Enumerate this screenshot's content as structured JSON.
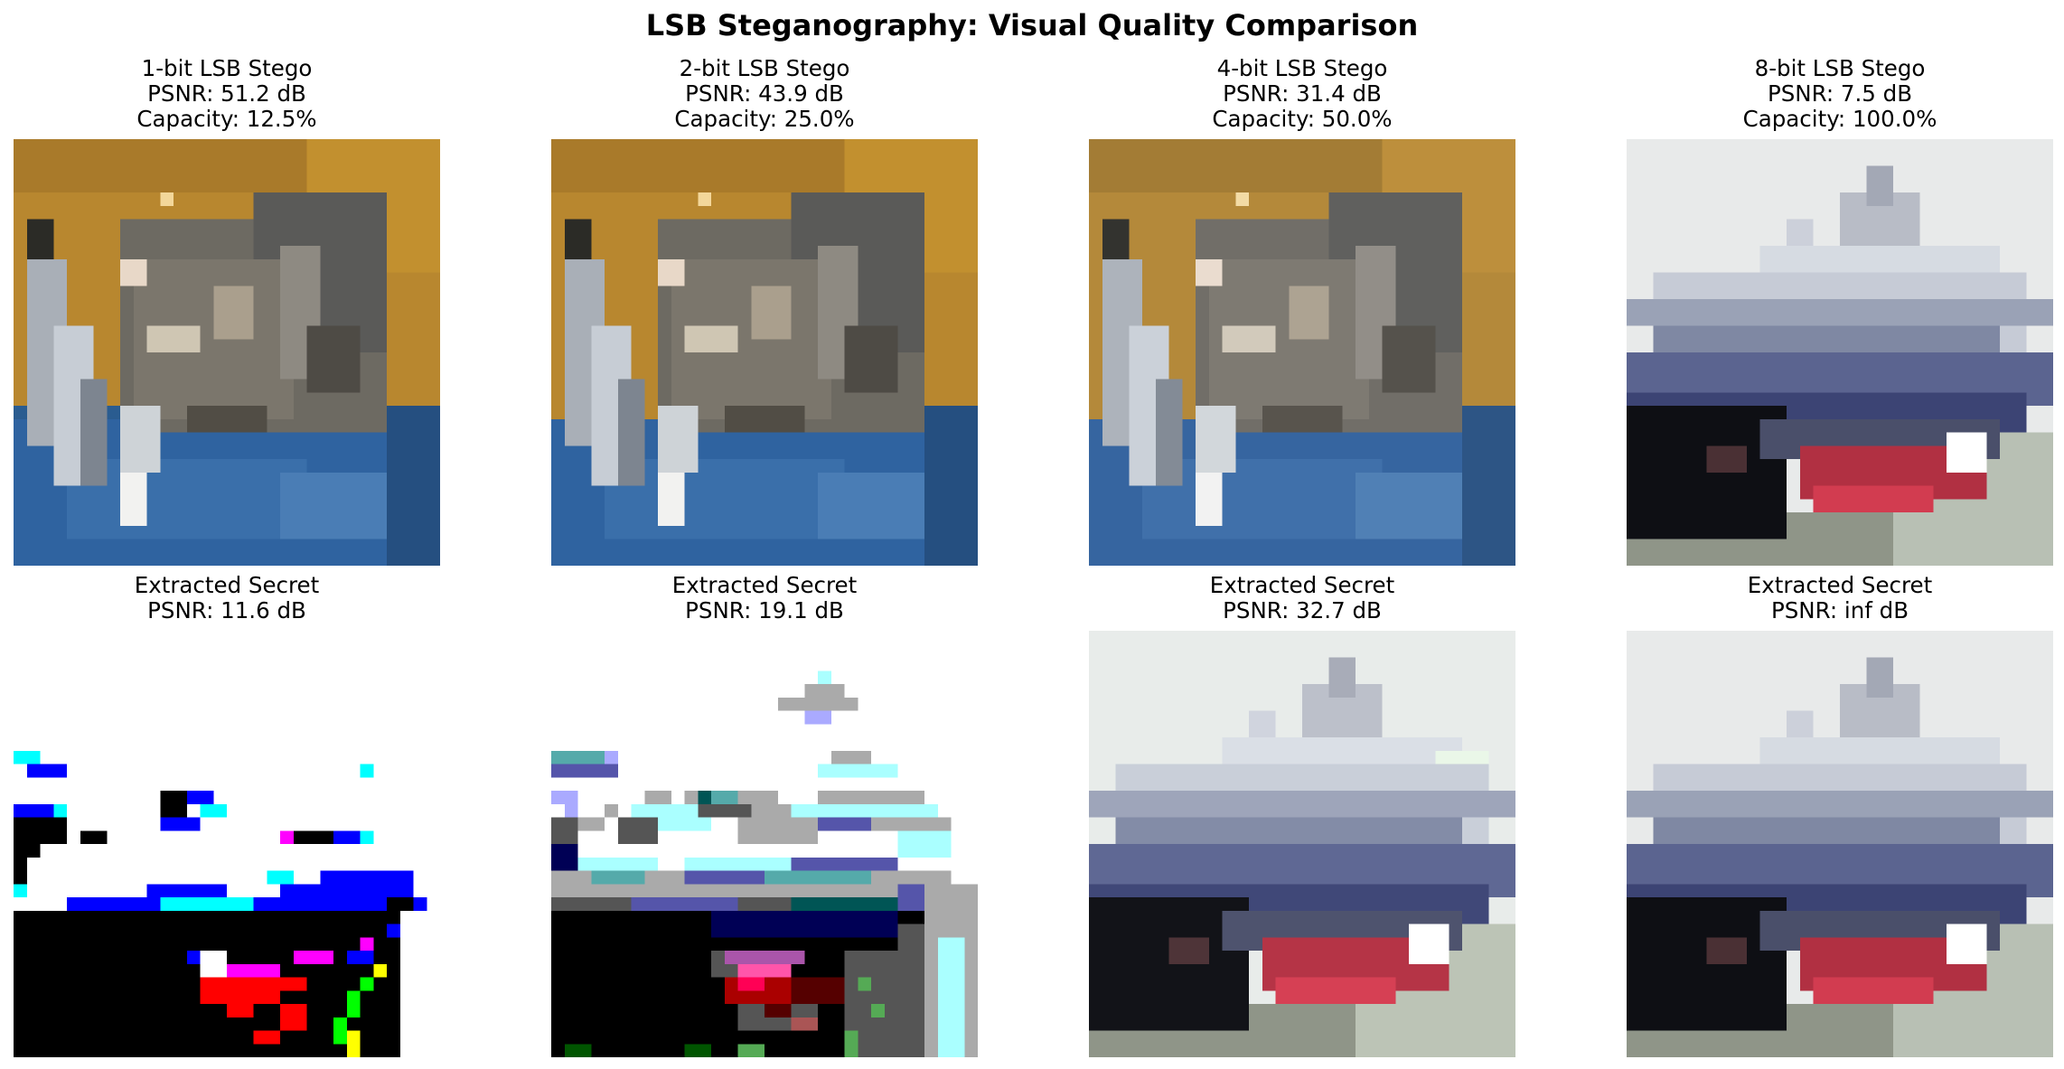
{
  "figure": {
    "title": "LSB Steganography: Visual Quality Comparison"
  },
  "stego": [
    {
      "label": "1-bit LSB Stego",
      "psnr": "PSNR: 51.2 dB",
      "capacity": "Capacity: 12.5%",
      "image": "cat-image"
    },
    {
      "label": "2-bit LSB Stego",
      "psnr": "PSNR: 43.9 dB",
      "capacity": "Capacity: 25.0%",
      "image": "cat-image"
    },
    {
      "label": "4-bit LSB Stego",
      "psnr": "PSNR: 31.4 dB",
      "capacity": "Capacity: 50.0%",
      "image": "cat-image"
    },
    {
      "label": "8-bit LSB Stego",
      "psnr": "PSNR: 7.5 dB",
      "capacity": "Capacity: 100.0%",
      "image": "ship-image"
    }
  ],
  "extracted": [
    {
      "label": "Extracted Secret",
      "psnr": "PSNR: 11.6 dB",
      "image": "quantized-ship-image"
    },
    {
      "label": "Extracted Secret",
      "psnr": "PSNR: 19.1 dB",
      "image": "quantized-ship-image"
    },
    {
      "label": "Extracted Secret",
      "psnr": "PSNR: 32.7 dB",
      "image": "ship-image"
    },
    {
      "label": "Extracted Secret",
      "psnr": "PSNR: inf dB",
      "image": "ship-image"
    }
  ]
}
